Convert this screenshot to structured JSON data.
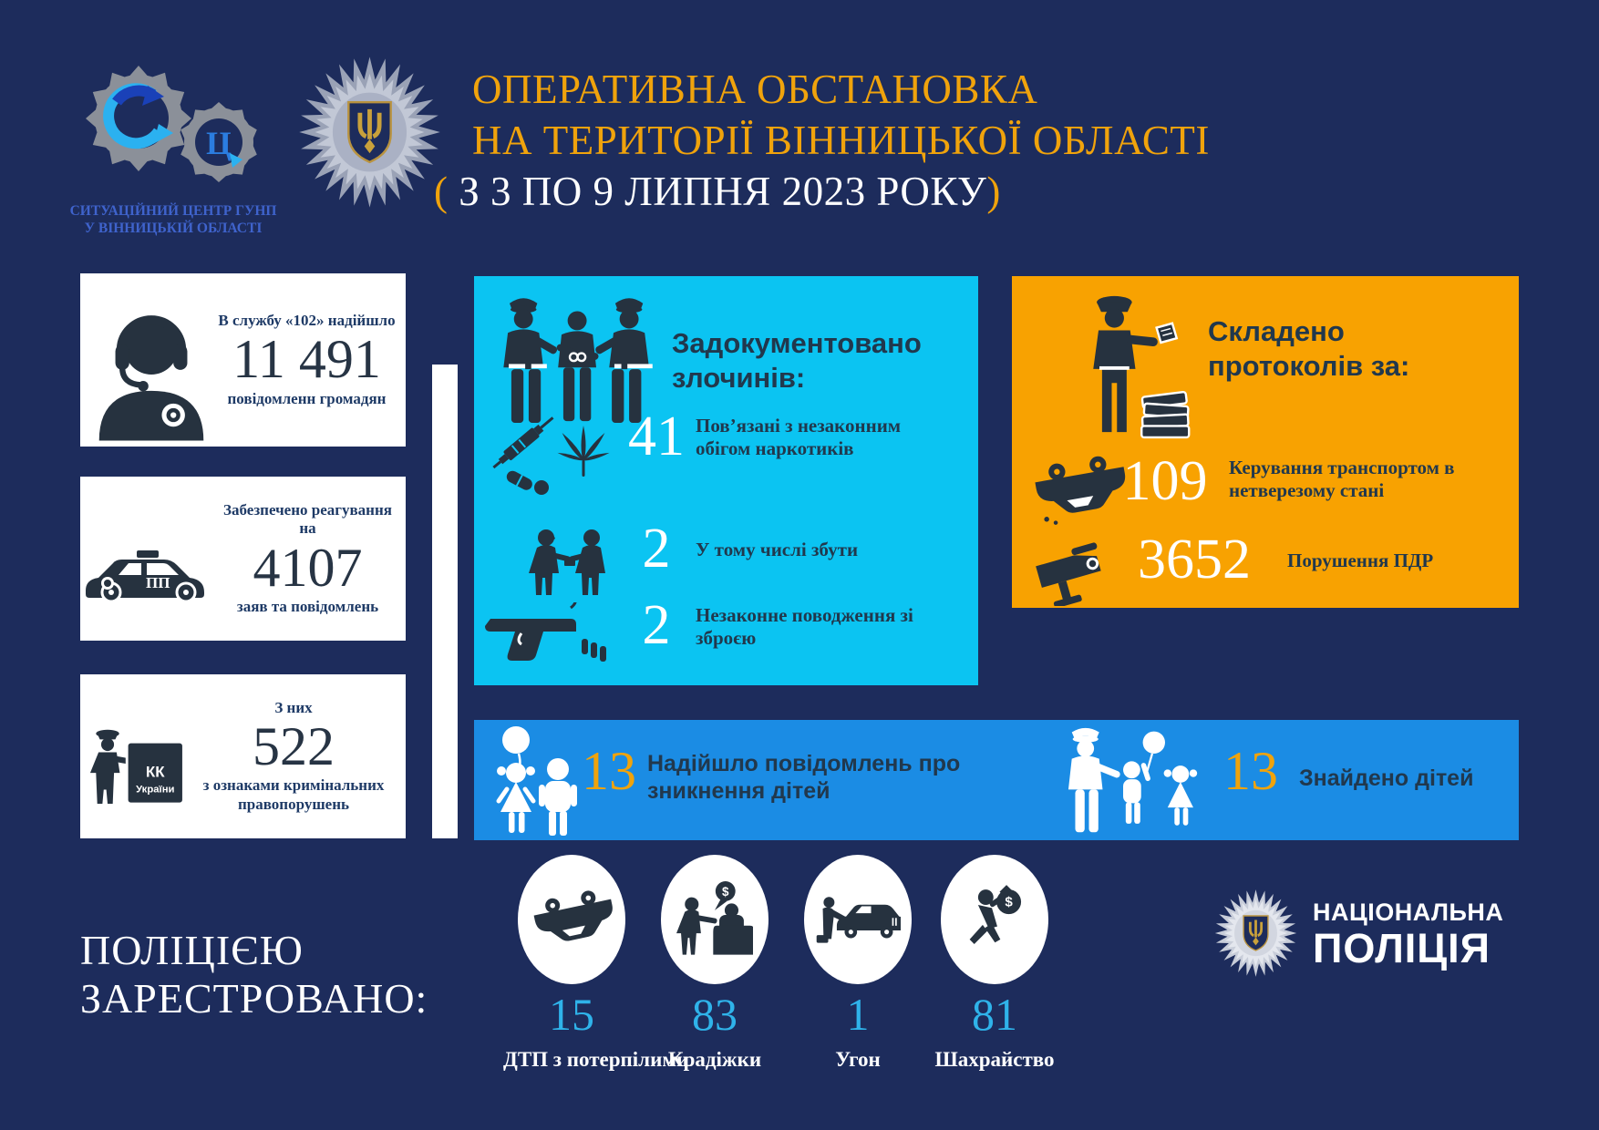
{
  "header": {
    "center_name_line1": "СИТУАЦІЙНИЙ ЦЕНТР ГУНП",
    "center_name_line2": "У ВІННИЦЬКІЙ ОБЛАСТІ",
    "title_line1": "ОПЕРАТИВНА ОБСТАНОВКА",
    "title_line2": "НА ТЕРИТОРІЇ ВІННИЦЬКОЇ ОБЛАСТІ",
    "title_line3_prefix": "( ",
    "title_line3_period": "З 3 ПО 9 ЛИПНЯ 2023 РОКУ",
    "title_line3_suffix": ")"
  },
  "left_cards": {
    "card1": {
      "top_label": "В службу «102» надійшло",
      "value": "11 491",
      "bottom_label": "повідомленн громадян"
    },
    "card2": {
      "top_label": "Забезпечено реагування на",
      "value": "4107",
      "bottom_label": "заяв та повідомлень"
    },
    "card3": {
      "top_label": "З них",
      "value": "522",
      "bottom_label": "з ознаками кримінальних правопорушень",
      "book_line1": "КК",
      "book_line2": "України"
    }
  },
  "crimes_panel": {
    "title_line1": "Задокументовано",
    "title_line2": "злочинів:",
    "row1": {
      "value": "41",
      "label": "Пов’язані з незаконним обігом наркотиків"
    },
    "row2": {
      "value": "2",
      "label": "У тому числі збути"
    },
    "row3": {
      "value": "2",
      "label": "Незаконне поводження зі зброєю"
    }
  },
  "protocols_panel": {
    "title_line1": "Складено",
    "title_line2": "протоколів за:",
    "row1": {
      "value": "109",
      "label": "Керування транспортом в нетверезому стані"
    },
    "row2": {
      "value": "3652",
      "label": "Порушення ПДР"
    }
  },
  "children_bar": {
    "missing_value": "13",
    "missing_label": "Надійшло повідомлень про зникнення дітей",
    "found_value": "13",
    "found_label": "Знайдено дітей"
  },
  "registered_section": {
    "title_line1": "ПОЛІЦІЄЮ",
    "title_line2": "ЗАРЕСТРОВАНО:",
    "items": [
      {
        "value": "15",
        "label": "ДТП з потерпілими"
      },
      {
        "value": "83",
        "label": "Крадіжки"
      },
      {
        "value": "1",
        "label": "Угон"
      },
      {
        "value": "81",
        "label": "Шахрайство"
      }
    ]
  },
  "footer_logo": {
    "line1": "НАЦІОНАЛЬНА",
    "line2": "ПОЛІЦІЯ"
  },
  "misc": {
    "currency": "$",
    "logo_letter": "Ц",
    "police_car_label": "ПП"
  },
  "colors": {
    "background": "#1d2c5c",
    "accent_orange": "#f0a30c",
    "cyan_panel": "#0bc4f2",
    "orange_panel": "#f8a201",
    "blue_bar": "#1b8ce4",
    "panel_text": "#21384d",
    "number_cyan": "#2fb3ea",
    "icon_dark": "#26323f",
    "caption_blue": "#3f63cc"
  }
}
